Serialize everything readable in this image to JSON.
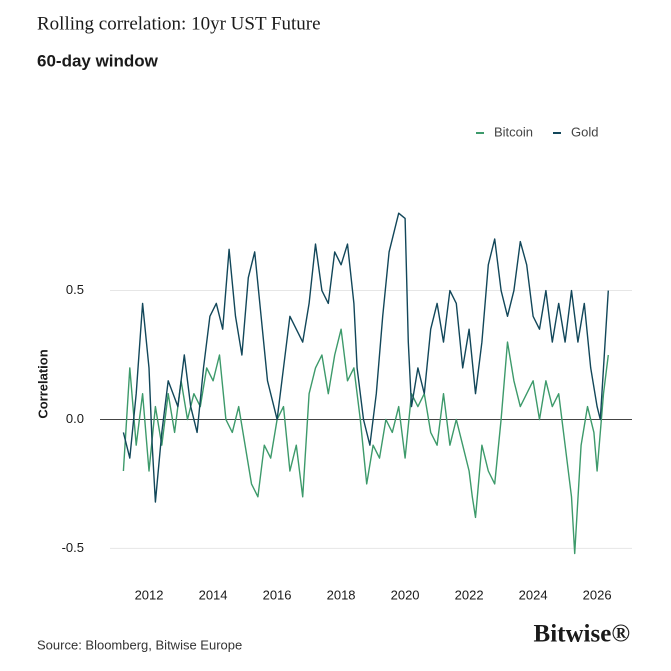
{
  "chart_data": {
    "type": "line",
    "title": "Rolling correlation: 10yr UST Future",
    "subtitle": "60-day window",
    "y_label": "Correlation",
    "source": "Source: Bloomberg, Bitwise Europe",
    "brand": "Bitwise®",
    "xlim": [
      2010.78,
      2027.09
    ],
    "xticks": [
      2012,
      2014,
      2016,
      2018,
      2020,
      2022,
      2024,
      2026
    ],
    "ylim": [
      -0.58,
      0.89
    ],
    "yticks": [
      0.5,
      {
        "value": 0,
        "label": "0.0"
      },
      -0.5
    ],
    "grid": true,
    "legend": "top-right",
    "series": [
      {
        "name": "Bitcoin",
        "color": "#3d9a6b",
        "x": [
          2011.2,
          2011.4,
          2011.6,
          2011.8,
          2012.0,
          2012.2,
          2012.4,
          2012.6,
          2012.8,
          2013.0,
          2013.2,
          2013.4,
          2013.6,
          2013.8,
          2014.0,
          2014.2,
          2014.4,
          2014.6,
          2014.8,
          2015.0,
          2015.2,
          2015.4,
          2015.6,
          2015.8,
          2016.0,
          2016.2,
          2016.4,
          2016.6,
          2016.8,
          2017.0,
          2017.2,
          2017.4,
          2017.6,
          2017.8,
          2018.0,
          2018.2,
          2018.4,
          2018.6,
          2018.8,
          2019.0,
          2019.2,
          2019.4,
          2019.6,
          2019.8,
          2020.0,
          2020.2,
          2020.4,
          2020.6,
          2020.8,
          2021.0,
          2021.2,
          2021.4,
          2021.6,
          2021.8,
          2022.0,
          2022.1,
          2022.2,
          2022.4,
          2022.6,
          2022.8,
          2023.0,
          2023.2,
          2023.4,
          2023.6,
          2023.8,
          2024.0,
          2024.2,
          2024.4,
          2024.6,
          2024.8,
          2025.0,
          2025.2,
          2025.3,
          2025.5,
          2025.7,
          2025.9,
          2026.0,
          2026.2,
          2026.35
        ],
        "values": [
          -0.2,
          0.2,
          -0.1,
          0.1,
          -0.2,
          0.05,
          -0.1,
          0.1,
          -0.05,
          0.15,
          0.0,
          0.1,
          0.05,
          0.2,
          0.15,
          0.25,
          0.0,
          -0.05,
          0.05,
          -0.1,
          -0.25,
          -0.3,
          -0.1,
          -0.15,
          0.0,
          0.05,
          -0.2,
          -0.1,
          -0.3,
          0.1,
          0.2,
          0.25,
          0.1,
          0.25,
          0.35,
          0.15,
          0.2,
          0.0,
          -0.25,
          -0.1,
          -0.15,
          0.0,
          -0.05,
          0.05,
          -0.15,
          0.1,
          0.05,
          0.1,
          -0.05,
          -0.1,
          0.1,
          -0.1,
          0.0,
          -0.1,
          -0.2,
          -0.3,
          -0.38,
          -0.1,
          -0.2,
          -0.25,
          0.0,
          0.3,
          0.15,
          0.05,
          0.1,
          0.15,
          0.0,
          0.15,
          0.05,
          0.1,
          -0.1,
          -0.3,
          -0.52,
          -0.1,
          0.05,
          -0.05,
          -0.2,
          0.1,
          0.25
        ]
      },
      {
        "name": "Gold",
        "color": "#12475a",
        "x": [
          2011.2,
          2011.4,
          2011.6,
          2011.8,
          2012.0,
          2012.1,
          2012.2,
          2012.4,
          2012.6,
          2012.9,
          2013.1,
          2013.3,
          2013.5,
          2013.7,
          2013.9,
          2014.1,
          2014.3,
          2014.5,
          2014.7,
          2014.9,
          2015.1,
          2015.3,
          2015.5,
          2015.7,
          2015.9,
          2016.0,
          2016.2,
          2016.4,
          2016.6,
          2016.8,
          2017.0,
          2017.2,
          2017.4,
          2017.6,
          2017.8,
          2018.0,
          2018.2,
          2018.4,
          2018.5,
          2018.7,
          2018.9,
          2019.1,
          2019.3,
          2019.5,
          2019.7,
          2019.8,
          2020.0,
          2020.1,
          2020.2,
          2020.4,
          2020.6,
          2020.8,
          2021.0,
          2021.2,
          2021.4,
          2021.6,
          2021.8,
          2022.0,
          2022.2,
          2022.4,
          2022.6,
          2022.8,
          2023.0,
          2023.2,
          2023.4,
          2023.6,
          2023.8,
          2024.0,
          2024.2,
          2024.4,
          2024.6,
          2024.8,
          2025.0,
          2025.2,
          2025.4,
          2025.6,
          2025.8,
          2026.0,
          2026.1,
          2026.2,
          2026.35
        ],
        "values": [
          -0.05,
          -0.15,
          0.1,
          0.45,
          0.2,
          -0.1,
          -0.32,
          -0.05,
          0.15,
          0.05,
          0.25,
          0.05,
          -0.05,
          0.2,
          0.4,
          0.45,
          0.35,
          0.66,
          0.4,
          0.25,
          0.55,
          0.65,
          0.4,
          0.15,
          0.05,
          0.0,
          0.2,
          0.4,
          0.35,
          0.3,
          0.45,
          0.68,
          0.5,
          0.45,
          0.65,
          0.6,
          0.68,
          0.45,
          0.2,
          0.0,
          -0.1,
          0.1,
          0.4,
          0.65,
          0.75,
          0.8,
          0.78,
          0.3,
          0.05,
          0.2,
          0.1,
          0.35,
          0.45,
          0.3,
          0.5,
          0.45,
          0.2,
          0.35,
          0.1,
          0.3,
          0.6,
          0.7,
          0.5,
          0.4,
          0.5,
          0.69,
          0.6,
          0.4,
          0.35,
          0.5,
          0.3,
          0.45,
          0.3,
          0.5,
          0.3,
          0.45,
          0.2,
          0.05,
          0.0,
          0.2,
          0.5
        ]
      }
    ]
  }
}
